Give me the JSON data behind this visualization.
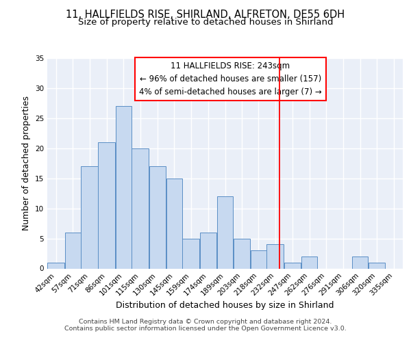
{
  "title": "11, HALLFIELDS RISE, SHIRLAND, ALFRETON, DE55 6DH",
  "subtitle": "Size of property relative to detached houses in Shirland",
  "xlabel": "Distribution of detached houses by size in Shirland",
  "ylabel": "Number of detached properties",
  "categories": [
    "42sqm",
    "57sqm",
    "71sqm",
    "86sqm",
    "101sqm",
    "115sqm",
    "130sqm",
    "145sqm",
    "159sqm",
    "174sqm",
    "189sqm",
    "203sqm",
    "218sqm",
    "232sqm",
    "247sqm",
    "262sqm",
    "276sqm",
    "291sqm",
    "306sqm",
    "320sqm",
    "335sqm"
  ],
  "values": [
    1,
    6,
    17,
    21,
    27,
    20,
    17,
    15,
    5,
    6,
    12,
    5,
    3,
    4,
    1,
    2,
    0,
    0,
    2,
    1,
    0
  ],
  "bar_color": "#c7d9f0",
  "bar_edge_color": "#5a8ec5",
  "bar_left_edges": [
    42,
    57,
    71,
    86,
    101,
    115,
    130,
    145,
    159,
    174,
    189,
    203,
    218,
    232,
    247,
    262,
    276,
    291,
    306,
    320,
    335
  ],
  "bar_widths": [
    15,
    14,
    15,
    15,
    14,
    15,
    15,
    14,
    15,
    15,
    14,
    15,
    14,
    15,
    15,
    14,
    15,
    15,
    14,
    15,
    15
  ],
  "red_line_x": 243,
  "annotation_lines": [
    "11 HALLFIELDS RISE: 243sqm",
    "← 96% of detached houses are smaller (157)",
    "4% of semi-detached houses are larger (7) →"
  ],
  "ylim": [
    0,
    35
  ],
  "yticks": [
    0,
    5,
    10,
    15,
    20,
    25,
    30,
    35
  ],
  "footer_lines": [
    "Contains HM Land Registry data © Crown copyright and database right 2024.",
    "Contains public sector information licensed under the Open Government Licence v3.0."
  ],
  "bg_color": "#eaeff8",
  "grid_color": "#ffffff",
  "title_fontsize": 10.5,
  "subtitle_fontsize": 9.5,
  "axis_label_fontsize": 9,
  "tick_fontsize": 7.5,
  "annotation_fontsize": 8.5,
  "footer_fontsize": 6.8
}
